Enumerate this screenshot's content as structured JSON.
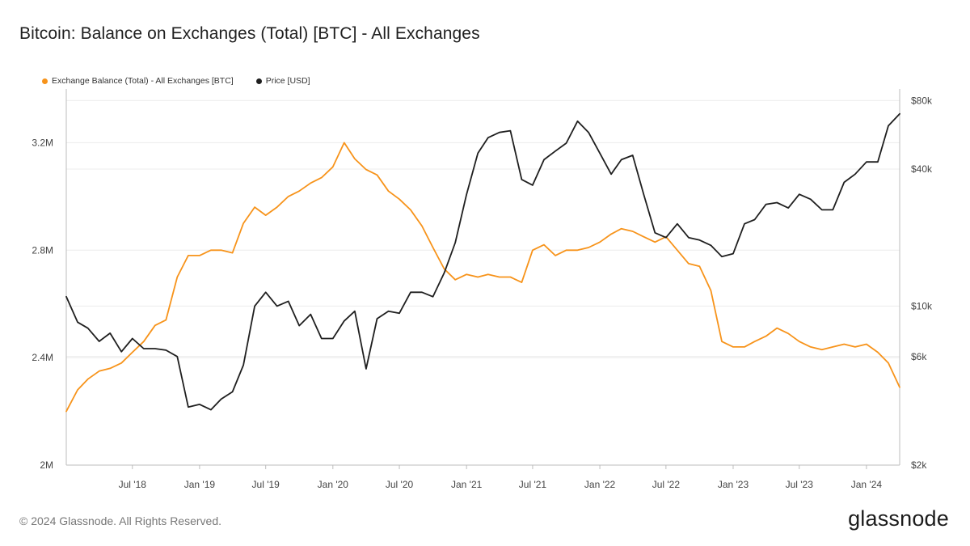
{
  "title": "Bitcoin: Balance on Exchanges (Total) [BTC] - All Exchanges",
  "footer": "© 2024 Glassnode. All Rights Reserved.",
  "logo": "glassnode",
  "colors": {
    "balance": "#f7931a",
    "price": "#1f1f1f",
    "grid": "#ececec",
    "axis": "#bdbdbd"
  },
  "chart_data": {
    "type": "line",
    "legend_position": "top-left",
    "grid": true,
    "x_ticks": [
      "Jul '18",
      "Jan '19",
      "Jul '19",
      "Jan '20",
      "Jul '20",
      "Jan '21",
      "Jul '21",
      "Jan '22",
      "Jul '22",
      "Jan '23",
      "Jul '23",
      "Jan '24"
    ],
    "x_tick_dates": [
      "2018-07-01",
      "2019-01-01",
      "2019-07-01",
      "2020-01-01",
      "2020-07-01",
      "2021-01-01",
      "2021-07-01",
      "2022-01-01",
      "2022-07-01",
      "2023-01-01",
      "2023-07-01",
      "2024-01-01"
    ],
    "xlim": [
      "2018-01-01",
      "2024-04-01"
    ],
    "y_left": {
      "ticks": [
        "2M",
        "2.4M",
        "2.8M",
        "3.2M"
      ],
      "tick_values": [
        2000000,
        2400000,
        2800000,
        3200000
      ],
      "ylim": [
        2000000,
        3400000
      ]
    },
    "y_right": {
      "scale": "log",
      "ticks": [
        "$2k",
        "$6k",
        "$10k",
        "$40k",
        "$80k"
      ],
      "tick_values": [
        2000,
        6000,
        10000,
        40000,
        80000
      ],
      "ylim": [
        2000,
        90000
      ]
    },
    "series": [
      {
        "name": "Exchange Balance (Total) - All Exchanges [BTC]",
        "axis": "left",
        "x": [
          "2018-01-01",
          "2018-02-01",
          "2018-03-01",
          "2018-04-01",
          "2018-05-01",
          "2018-06-01",
          "2018-07-01",
          "2018-08-01",
          "2018-09-01",
          "2018-10-01",
          "2018-11-01",
          "2018-12-01",
          "2019-01-01",
          "2019-02-01",
          "2019-03-01",
          "2019-04-01",
          "2019-05-01",
          "2019-06-01",
          "2019-07-01",
          "2019-08-01",
          "2019-09-01",
          "2019-10-01",
          "2019-11-01",
          "2019-12-01",
          "2020-01-01",
          "2020-02-01",
          "2020-03-01",
          "2020-04-01",
          "2020-05-01",
          "2020-06-01",
          "2020-07-01",
          "2020-08-01",
          "2020-09-01",
          "2020-10-01",
          "2020-11-01",
          "2020-12-01",
          "2021-01-01",
          "2021-02-01",
          "2021-03-01",
          "2021-04-01",
          "2021-05-01",
          "2021-06-01",
          "2021-07-01",
          "2021-08-01",
          "2021-09-01",
          "2021-10-01",
          "2021-11-01",
          "2021-12-01",
          "2022-01-01",
          "2022-02-01",
          "2022-03-01",
          "2022-04-01",
          "2022-05-01",
          "2022-06-01",
          "2022-07-01",
          "2022-08-01",
          "2022-09-01",
          "2022-10-01",
          "2022-11-01",
          "2022-12-01",
          "2023-01-01",
          "2023-02-01",
          "2023-03-01",
          "2023-04-01",
          "2023-05-01",
          "2023-06-01",
          "2023-07-01",
          "2023-08-01",
          "2023-09-01",
          "2023-10-01",
          "2023-11-01",
          "2023-12-01",
          "2024-01-01",
          "2024-02-01",
          "2024-03-01",
          "2024-04-01"
        ],
        "values": [
          2200000,
          2280000,
          2320000,
          2350000,
          2360000,
          2380000,
          2420000,
          2460000,
          2520000,
          2540000,
          2700000,
          2780000,
          2780000,
          2800000,
          2800000,
          2790000,
          2900000,
          2960000,
          2930000,
          2960000,
          3000000,
          3020000,
          3050000,
          3070000,
          3110000,
          3200000,
          3140000,
          3100000,
          3080000,
          3020000,
          2990000,
          2950000,
          2890000,
          2810000,
          2730000,
          2690000,
          2710000,
          2700000,
          2710000,
          2700000,
          2700000,
          2680000,
          2800000,
          2820000,
          2780000,
          2800000,
          2800000,
          2810000,
          2830000,
          2860000,
          2880000,
          2870000,
          2850000,
          2830000,
          2850000,
          2800000,
          2750000,
          2740000,
          2650000,
          2460000,
          2440000,
          2440000,
          2460000,
          2480000,
          2510000,
          2490000,
          2460000,
          2440000,
          2430000,
          2440000,
          2450000,
          2440000,
          2450000,
          2420000,
          2380000,
          2290000
        ]
      },
      {
        "name": "Price [USD]",
        "axis": "right",
        "x": [
          "2018-01-01",
          "2018-02-01",
          "2018-03-01",
          "2018-04-01",
          "2018-05-01",
          "2018-06-01",
          "2018-07-01",
          "2018-08-01",
          "2018-09-01",
          "2018-10-01",
          "2018-11-01",
          "2018-12-01",
          "2019-01-01",
          "2019-02-01",
          "2019-03-01",
          "2019-04-01",
          "2019-05-01",
          "2019-06-01",
          "2019-07-01",
          "2019-08-01",
          "2019-09-01",
          "2019-10-01",
          "2019-11-01",
          "2019-12-01",
          "2020-01-01",
          "2020-02-01",
          "2020-03-01",
          "2020-04-01",
          "2020-05-01",
          "2020-06-01",
          "2020-07-01",
          "2020-08-01",
          "2020-09-01",
          "2020-10-01",
          "2020-11-01",
          "2020-12-01",
          "2021-01-01",
          "2021-02-01",
          "2021-03-01",
          "2021-04-01",
          "2021-05-01",
          "2021-06-01",
          "2021-07-01",
          "2021-08-01",
          "2021-09-01",
          "2021-10-01",
          "2021-11-01",
          "2021-12-01",
          "2022-01-01",
          "2022-02-01",
          "2022-03-01",
          "2022-04-01",
          "2022-05-01",
          "2022-06-01",
          "2022-07-01",
          "2022-08-01",
          "2022-09-01",
          "2022-10-01",
          "2022-11-01",
          "2022-12-01",
          "2023-01-01",
          "2023-02-01",
          "2023-03-01",
          "2023-04-01",
          "2023-05-01",
          "2023-06-01",
          "2023-07-01",
          "2023-08-01",
          "2023-09-01",
          "2023-10-01",
          "2023-11-01",
          "2023-12-01",
          "2024-01-01",
          "2024-02-01",
          "2024-03-01",
          "2024-04-01"
        ],
        "values": [
          11000,
          8500,
          8000,
          7000,
          7600,
          6300,
          7200,
          6500,
          6500,
          6400,
          6000,
          3600,
          3700,
          3500,
          3900,
          4200,
          5500,
          10000,
          11500,
          10000,
          10500,
          8200,
          9200,
          7200,
          7200,
          8600,
          9500,
          5300,
          8800,
          9500,
          9300,
          11500,
          11500,
          11000,
          14000,
          19000,
          31000,
          47000,
          55000,
          58000,
          59000,
          36000,
          34000,
          44000,
          48000,
          52000,
          65000,
          58000,
          47000,
          38000,
          44000,
          46000,
          31000,
          21000,
          20000,
          23000,
          20000,
          19500,
          18500,
          16500,
          17000,
          23000,
          24000,
          28000,
          28500,
          27000,
          31000,
          29500,
          26500,
          26500,
          35000,
          38000,
          43000,
          43000,
          62000,
          70000
        ]
      }
    ]
  }
}
